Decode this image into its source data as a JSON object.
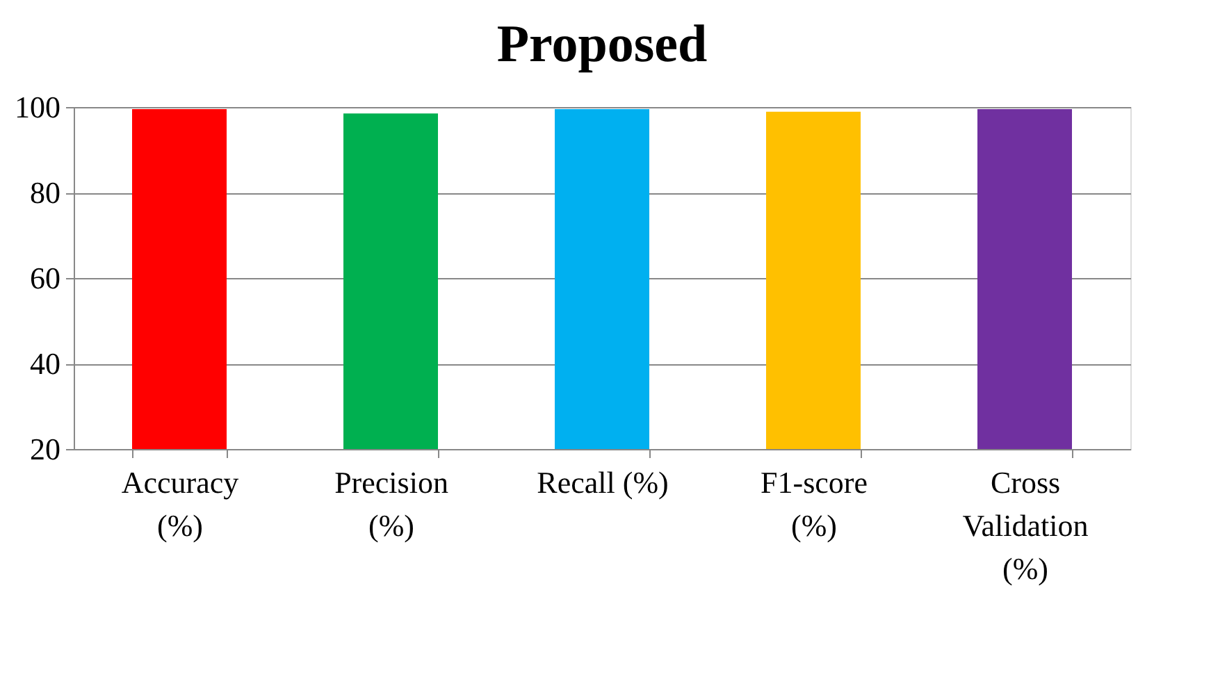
{
  "chart_data": {
    "type": "bar",
    "title": "Proposed",
    "categories": [
      "Accuracy (%)",
      "Precision (%)",
      "Recall (%)",
      "F1-score (%)",
      "Cross Validation (%)"
    ],
    "values": [
      99.5,
      98.5,
      99.5,
      98.9,
      99.5
    ],
    "colors": [
      "#ff0000",
      "#00b050",
      "#00b0f0",
      "#ffc000",
      "#7030a0"
    ],
    "ylim": [
      20,
      100
    ],
    "yticks": [
      20,
      40,
      60,
      80,
      100
    ],
    "grid": "y",
    "legend": false
  }
}
